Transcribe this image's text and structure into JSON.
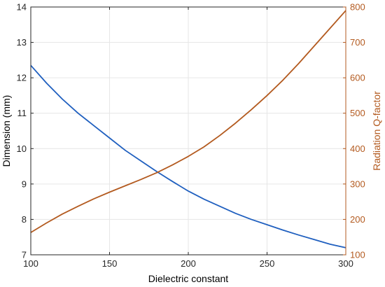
{
  "chart_data": {
    "type": "line",
    "title": "",
    "xlabel": "Dielectric constant",
    "ylabel_left": "Dimension (mm)",
    "ylabel_right": "Radiation Q-factor",
    "xlim": [
      100,
      300
    ],
    "ylim_left": [
      7,
      14
    ],
    "ylim_right": [
      100,
      800
    ],
    "x_ticks": [
      100,
      150,
      200,
      250,
      300
    ],
    "y_left_ticks": [
      7,
      8,
      9,
      10,
      11,
      12,
      13,
      14
    ],
    "y_right_ticks": [
      100,
      200,
      300,
      400,
      500,
      600,
      700,
      800
    ],
    "grid": true,
    "colors": {
      "left_axis": "#000000",
      "right_axis": "#b35a1f",
      "grid": "#e6e6e6"
    },
    "series": [
      {
        "axis": "left",
        "color": "#1f5fbf",
        "x": [
          100,
          110,
          120,
          130,
          140,
          150,
          160,
          170,
          180,
          190,
          200,
          210,
          220,
          230,
          240,
          250,
          260,
          270,
          280,
          290,
          300
        ],
        "values": [
          12.35,
          11.85,
          11.4,
          11.0,
          10.65,
          10.3,
          9.95,
          9.65,
          9.35,
          9.07,
          8.8,
          8.57,
          8.37,
          8.17,
          8.0,
          7.85,
          7.7,
          7.56,
          7.43,
          7.3,
          7.2
        ]
      },
      {
        "axis": "right",
        "color": "#b35a1f",
        "x": [
          100,
          110,
          120,
          130,
          140,
          150,
          160,
          170,
          180,
          190,
          200,
          210,
          220,
          230,
          240,
          250,
          260,
          270,
          280,
          290,
          300
        ],
        "values": [
          163,
          190,
          215,
          237,
          258,
          277,
          295,
          313,
          332,
          354,
          378,
          405,
          437,
          472,
          510,
          550,
          593,
          640,
          690,
          740,
          790
        ]
      }
    ]
  }
}
